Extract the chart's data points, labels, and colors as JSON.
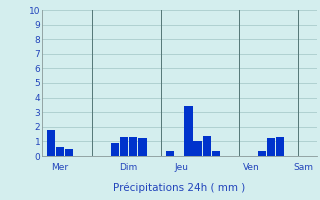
{
  "title": "Précipitations 24h ( mm )",
  "background_color": "#d4eeee",
  "grid_color": "#aacccc",
  "bar_color": "#0033cc",
  "ylim": [
    0,
    10
  ],
  "yticks": [
    0,
    1,
    2,
    3,
    4,
    5,
    6,
    7,
    8,
    9,
    10
  ],
  "day_labels": [
    "Mer",
    "Dim",
    "Jeu",
    "Ven",
    "Sam"
  ],
  "bars": [
    {
      "x": 1,
      "height": 1.8
    },
    {
      "x": 2,
      "height": 0.6
    },
    {
      "x": 3,
      "height": 0.5
    },
    {
      "x": 8,
      "height": 0.9
    },
    {
      "x": 9,
      "height": 1.3
    },
    {
      "x": 10,
      "height": 1.3
    },
    {
      "x": 11,
      "height": 1.2
    },
    {
      "x": 14,
      "height": 0.35
    },
    {
      "x": 16,
      "height": 3.4
    },
    {
      "x": 17,
      "height": 1.0
    },
    {
      "x": 18,
      "height": 1.4
    },
    {
      "x": 19,
      "height": 0.35
    },
    {
      "x": 24,
      "height": 0.35
    },
    {
      "x": 25,
      "height": 1.2
    },
    {
      "x": 26,
      "height": 1.3
    }
  ],
  "vlines_x": [
    5.5,
    13.0,
    21.5,
    28.0
  ],
  "vline_color": "#557777",
  "xlim": [
    0,
    30
  ],
  "bar_width": 0.9
}
